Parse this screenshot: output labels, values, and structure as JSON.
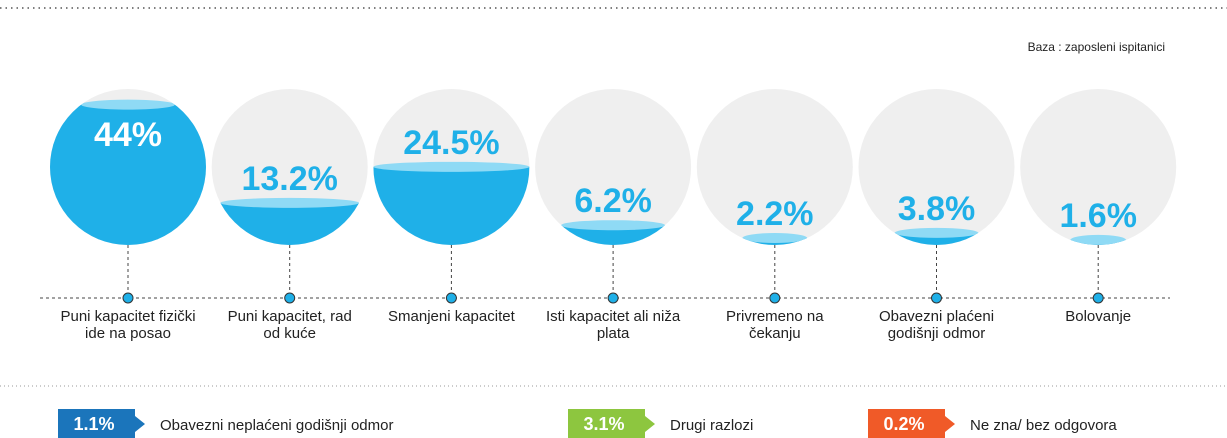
{
  "note": "Baza : zaposleni ispitanici",
  "chart_data": {
    "type": "liquid-circles",
    "categories": [
      "Puni kapacitet fizički ide na posao",
      "Puni kapacitet, rad od kuće",
      "Smanjeni kapacitet",
      "Isti kapacitet ali niža plata",
      "Privremeno na čekanju",
      "Obavezni plaćeni godišnji odmor",
      "Bolovanje"
    ],
    "values": [
      44,
      13.2,
      24.5,
      6.2,
      2.2,
      3.8,
      1.6
    ],
    "value_labels": [
      "44%",
      "13.2%",
      "24.5%",
      "6.2%",
      "2.2%",
      "3.8%",
      "1.6%"
    ],
    "color": "#1fb0e8",
    "extra": [
      {
        "name": "Obavezni neplaćeni godišnji odmor",
        "value": 1.1,
        "value_label": "1.1%",
        "color": "#1b75bb"
      },
      {
        "name": "Drugi razlozi",
        "value": 3.1,
        "value_label": "3.1%",
        "color": "#8dc63f"
      },
      {
        "name": "Ne zna/ bez odgovora",
        "value": 0.2,
        "value_label": "0.2%",
        "color": "#f05a28"
      }
    ]
  }
}
